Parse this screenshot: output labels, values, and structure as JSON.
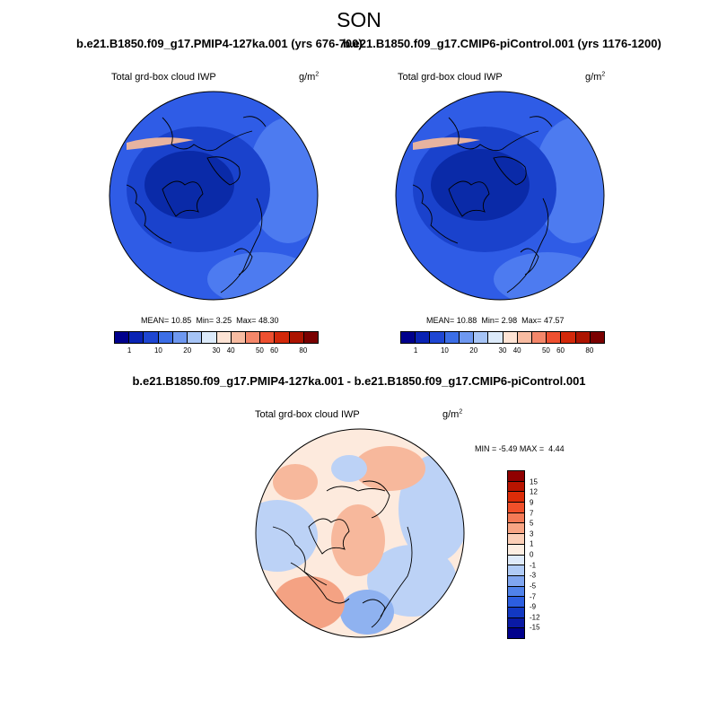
{
  "season": "SON",
  "panel_left": {
    "title": "b.e21.B1850.f09_g17.PMIP4-127ka.001 (yrs 676-700)",
    "variable": "Total grd-box cloud IWP",
    "units_base": "g/m",
    "units_exp": "2",
    "mean_label": "MEAN=",
    "mean": "10.85",
    "min_label": "Min=",
    "min": "3.25",
    "max_label": "Max=",
    "max": "48.30"
  },
  "panel_right": {
    "title": "b.e21.B1850.f09_g17.CMIP6-piControl.001 (yrs 1176-1200)",
    "variable": "Total grd-box cloud IWP",
    "units_base": "g/m",
    "units_exp": "2",
    "mean_label": "MEAN=",
    "mean": "10.88",
    "min_label": "Min=",
    "min": "2.98",
    "max_label": "Max=",
    "max": "47.57"
  },
  "panel_diff": {
    "title": "b.e21.B1850.f09_g17.PMIP4-127ka.001 - b.e21.B1850.f09_g17.CMIP6-piControl.001",
    "variable": "Total grd-box cloud IWP",
    "units_base": "g/m",
    "units_exp": "2",
    "min_label": "MIN =",
    "min": "-5.49",
    "max_label": "MAX =",
    "max": "4.44"
  },
  "colorbar_abs": {
    "levels": [
      "1",
      "10",
      "20",
      "30",
      "40",
      "50",
      "60",
      "80"
    ],
    "colors": [
      "#00008c",
      "#0a23b4",
      "#1e46d2",
      "#3c6ee6",
      "#6e98f0",
      "#a6c4f6",
      "#dceafa",
      "#fde3d4",
      "#f8bca2",
      "#f4876a",
      "#ee5030",
      "#d2280a",
      "#ac1400",
      "#7a0000"
    ]
  },
  "colorbar_diff": {
    "levels": [
      "15",
      "12",
      "9",
      "7",
      "5",
      "3",
      "1",
      "0",
      "-1",
      "-3",
      "-5",
      "-7",
      "-9",
      "-12",
      "-15"
    ],
    "colors": [
      "#900000",
      "#b81400",
      "#dc2c08",
      "#f0502a",
      "#f47a56",
      "#f8a584",
      "#fccfb7",
      "#fdeee2",
      "#deeafa",
      "#b0cbf6",
      "#80a6f0",
      "#5082ea",
      "#2c5ee0",
      "#1238c2",
      "#0a1aa4",
      "#00008c"
    ]
  },
  "map_fields": {
    "left": {
      "base": "#2f5ce6",
      "pole": "#0a2aa8",
      "polar": "#1a42cc",
      "streak": "#e7b3a0",
      "edge": "#4d7bf0"
    },
    "right": {
      "base": "#2f5ce6",
      "pole": "#0a2aa8",
      "polar": "#1a42cc",
      "streak": "#e7b3a0",
      "edge": "#4d7bf0"
    },
    "diff": {
      "base": "#fdeadd",
      "warm": "#f7b89c",
      "cool": "#bcd2f6",
      "cool2": "#8fb2f0",
      "warm2": "#f4a283"
    }
  }
}
